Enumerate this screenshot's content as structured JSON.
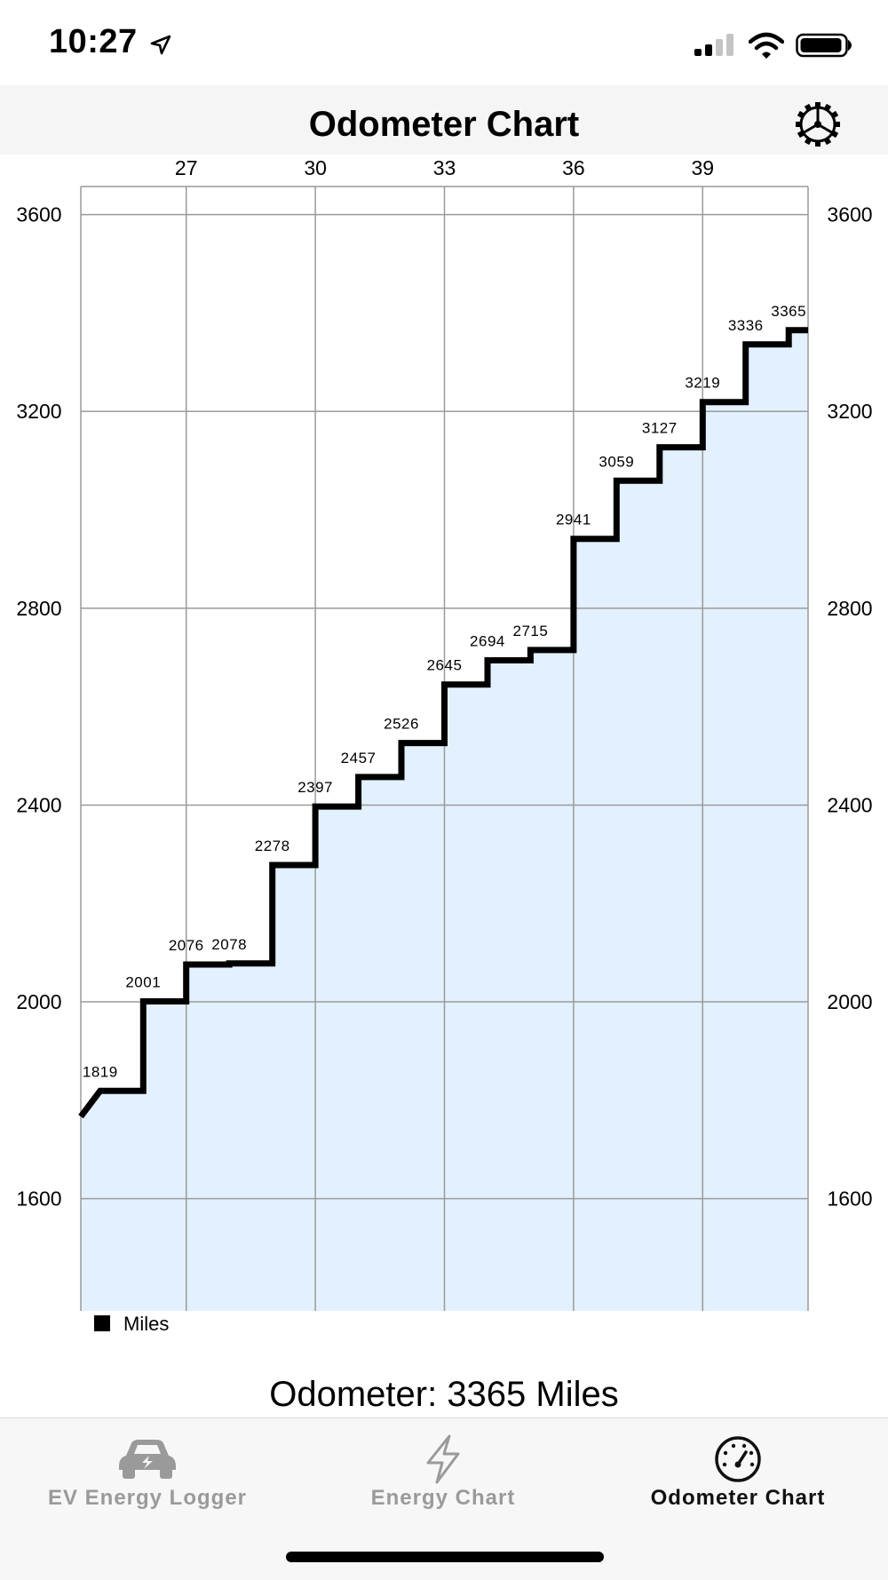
{
  "status_bar": {
    "time": "10:27"
  },
  "header": {
    "title": "Odometer Chart"
  },
  "chart_data": {
    "type": "line",
    "step": true,
    "filled": true,
    "x_ticks": [
      "27",
      "30",
      "33",
      "36",
      "39"
    ],
    "y_ticks": [
      "3600",
      "3200",
      "2800",
      "2400",
      "2000",
      "1600"
    ],
    "xlim": [
      24.55,
      41.45
    ],
    "ylim": [
      1372,
      3657
    ],
    "series": [
      {
        "name": "Miles",
        "points": [
          [
            24.55,
            1767
          ],
          [
            25,
            1819
          ],
          [
            26,
            1819
          ],
          [
            26,
            2001
          ],
          [
            27,
            2001
          ],
          [
            27,
            2076
          ],
          [
            28,
            2076
          ],
          [
            28,
            2078
          ],
          [
            29,
            2078
          ],
          [
            29,
            2278
          ],
          [
            30,
            2278
          ],
          [
            30,
            2397
          ],
          [
            31,
            2397
          ],
          [
            31,
            2457
          ],
          [
            32,
            2457
          ],
          [
            32,
            2526
          ],
          [
            33,
            2526
          ],
          [
            33,
            2645
          ],
          [
            34,
            2645
          ],
          [
            34,
            2694
          ],
          [
            35,
            2694
          ],
          [
            35,
            2715
          ],
          [
            36,
            2715
          ],
          [
            36,
            2941
          ],
          [
            37,
            2941
          ],
          [
            37,
            3059
          ],
          [
            38,
            3059
          ],
          [
            38,
            3127
          ],
          [
            39,
            3127
          ],
          [
            39,
            3219
          ],
          [
            40,
            3219
          ],
          [
            40,
            3336
          ],
          [
            41,
            3336
          ],
          [
            41,
            3365
          ],
          [
            41.45,
            3365
          ]
        ],
        "labels": [
          {
            "x": 25,
            "y": 1819,
            "text": "1819"
          },
          {
            "x": 26,
            "y": 2001,
            "text": "2001"
          },
          {
            "x": 27,
            "y": 2076,
            "text": "2076"
          },
          {
            "x": 28,
            "y": 2078,
            "text": "2078"
          },
          {
            "x": 29,
            "y": 2278,
            "text": "2278"
          },
          {
            "x": 30,
            "y": 2397,
            "text": "2397"
          },
          {
            "x": 31,
            "y": 2457,
            "text": "2457"
          },
          {
            "x": 32,
            "y": 2526,
            "text": "2526"
          },
          {
            "x": 33,
            "y": 2645,
            "text": "2645"
          },
          {
            "x": 34,
            "y": 2694,
            "text": "2694"
          },
          {
            "x": 35,
            "y": 2715,
            "text": "2715"
          },
          {
            "x": 36,
            "y": 2941,
            "text": "2941"
          },
          {
            "x": 37,
            "y": 3059,
            "text": "3059"
          },
          {
            "x": 38,
            "y": 3127,
            "text": "3127"
          },
          {
            "x": 39,
            "y": 3219,
            "text": "3219"
          },
          {
            "x": 40,
            "y": 3336,
            "text": "3336"
          },
          {
            "x": 41,
            "y": 3365,
            "text": "3365"
          }
        ]
      }
    ],
    "legend": "bottom-left",
    "grid": true,
    "colors": {
      "line": "#000000",
      "fill": "#e3f0fe",
      "grid": "#9a9a9a"
    }
  },
  "readout": {
    "odometer": "Odometer: 3365 Miles"
  },
  "tabs": [
    {
      "label": "EV Energy Logger",
      "icon": "car-icon",
      "active": false
    },
    {
      "label": "Energy Chart",
      "icon": "lightning-icon",
      "active": false
    },
    {
      "label": "Odometer Chart",
      "icon": "speedometer-icon",
      "active": true
    }
  ]
}
